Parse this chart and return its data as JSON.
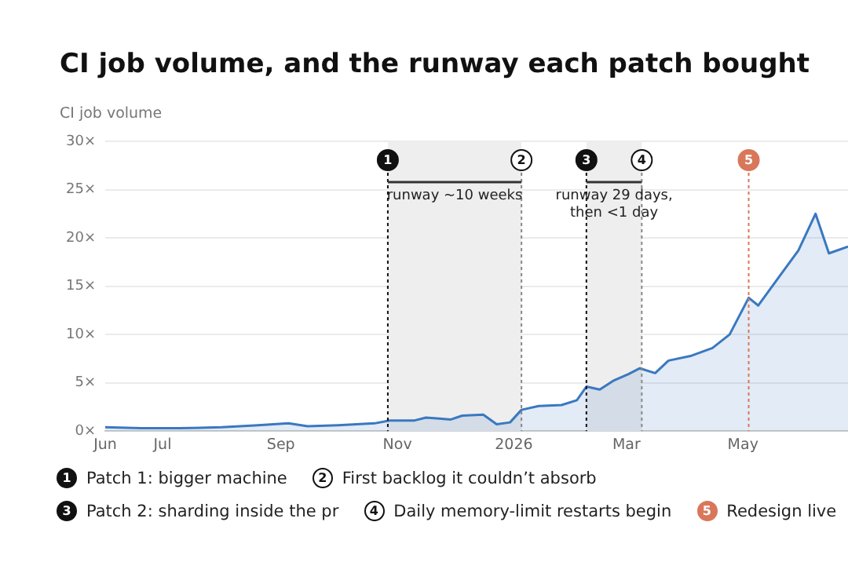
{
  "chart_data": {
    "type": "area",
    "title": "CI job volume, and the runway each patch bought",
    "ylabel": "CI job volume",
    "x": [
      "2025-06-01",
      "2025-06-20",
      "2025-07-10",
      "2025-08-01",
      "2025-08-20",
      "2025-09-05",
      "2025-09-15",
      "2025-10-01",
      "2025-10-20",
      "2025-10-28",
      "2025-11-10",
      "2025-11-16",
      "2025-11-23",
      "2025-11-29",
      "2025-12-05",
      "2025-12-16",
      "2025-12-23",
      "2025-12-30",
      "2026-01-05",
      "2026-01-14",
      "2026-01-26",
      "2026-02-03",
      "2026-02-08",
      "2026-02-15",
      "2026-02-22",
      "2026-03-02",
      "2026-03-08",
      "2026-03-16",
      "2026-03-23",
      "2026-04-04",
      "2026-04-15",
      "2026-04-24",
      "2026-05-04",
      "2026-05-09",
      "2026-05-20",
      "2026-05-30",
      "2026-06-08",
      "2026-06-15",
      "2026-06-25"
    ],
    "series": [
      {
        "color": "#3a78c0",
        "values": [
          0.4,
          0.3,
          0.3,
          0.4,
          0.6,
          0.8,
          0.5,
          0.6,
          0.8,
          1.1,
          1.1,
          1.4,
          1.3,
          1.2,
          1.6,
          1.7,
          0.7,
          0.9,
          2.2,
          2.6,
          2.7,
          3.2,
          4.6,
          4.3,
          5.2,
          5.9,
          6.5,
          6.0,
          7.3,
          7.8,
          8.6,
          10.0,
          13.8,
          13.0,
          16.0,
          18.7,
          22.5,
          18.4,
          19.1
        ]
      }
    ],
    "xlim": [
      "2025-06-01",
      "2026-06-25"
    ],
    "xticks": [
      {
        "value": "2025-06-01",
        "label": "Jun"
      },
      {
        "value": "2025-07-01",
        "label": "Jul"
      },
      {
        "value": "2025-09-01",
        "label": "Sep"
      },
      {
        "value": "2025-11-01",
        "label": "Nov"
      },
      {
        "value": "2026-01-01",
        "label": "2026"
      },
      {
        "value": "2026-03-01",
        "label": "Mar"
      },
      {
        "value": "2026-05-01",
        "label": "May"
      }
    ],
    "ylim": [
      0,
      30
    ],
    "yticks": [
      {
        "value": 0,
        "label": "0×"
      },
      {
        "value": 5,
        "label": "5×"
      },
      {
        "value": 10,
        "label": "10×"
      },
      {
        "value": 15,
        "label": "15×"
      },
      {
        "value": 20,
        "label": "20×"
      },
      {
        "value": 25,
        "label": "25×"
      },
      {
        "value": 30,
        "label": "30×"
      }
    ],
    "grid": "y",
    "ref_lines": [
      {
        "axis": "x",
        "value": "2025-10-27",
        "label": "1",
        "color": "#111111",
        "line_style": "dotted"
      },
      {
        "axis": "x",
        "value": "2026-01-05",
        "label": "2",
        "color": "#888888",
        "line_style": "dotted"
      },
      {
        "axis": "x",
        "value": "2026-02-08",
        "label": "3",
        "color": "#111111",
        "line_style": "dotted"
      },
      {
        "axis": "x",
        "value": "2026-03-09",
        "label": "4",
        "color": "#888888",
        "line_style": "dotted"
      },
      {
        "axis": "x",
        "value": "2026-05-04",
        "label": "5",
        "color": "#d9775a",
        "line_style": "dotted"
      }
    ],
    "bands": [
      {
        "axis": "x",
        "from": "2025-10-27",
        "to": "2026-01-05",
        "label": "runway ~10 weeks",
        "color": "#eeeeee"
      },
      {
        "axis": "x",
        "from": "2026-02-08",
        "to": "2026-03-09",
        "label": "runway 29 days, then <1 day",
        "color": "#eeeeee"
      }
    ],
    "annotations": [
      "Patch 1: bigger machine",
      "First backlog it couldn’t absorb",
      "Patch 2: sharding inside the pr",
      "Daily memory-limit restarts begin",
      "Redesign live"
    ]
  }
}
